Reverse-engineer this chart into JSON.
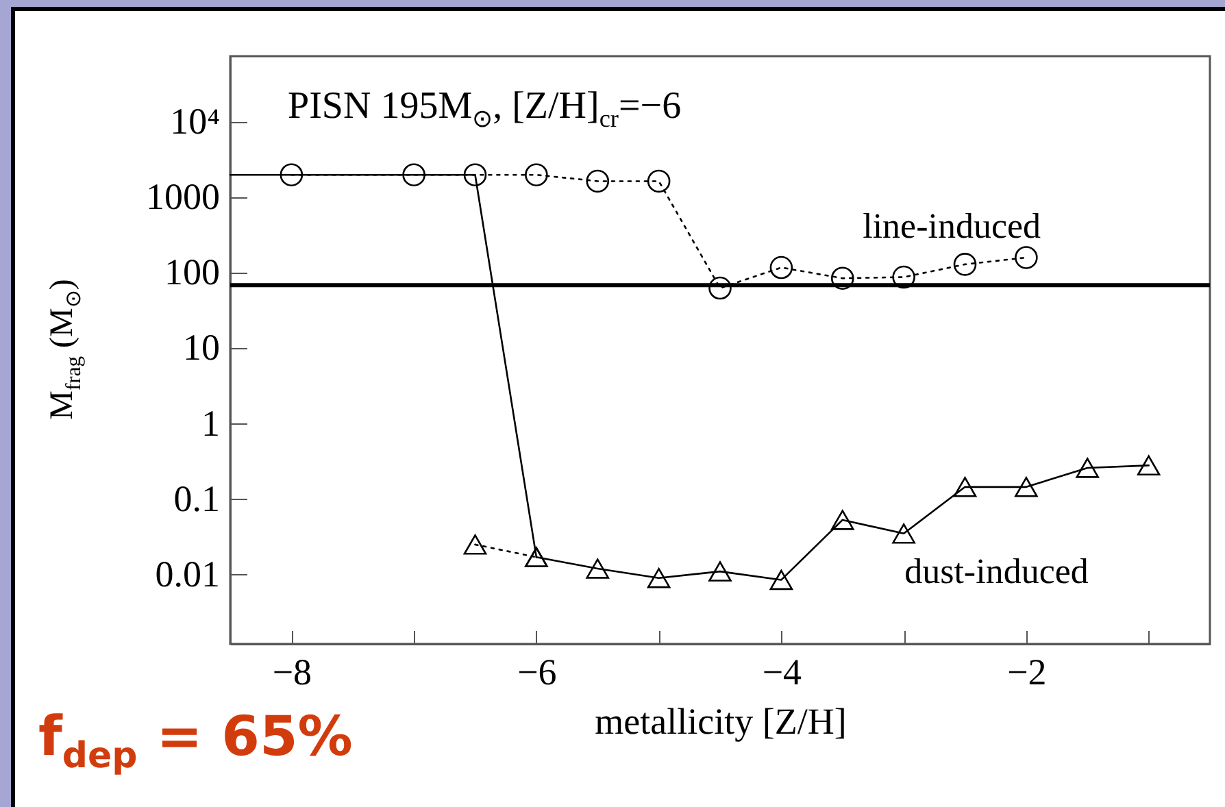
{
  "chart_data": {
    "type": "line",
    "xlabel": "metallicity [Z/H]",
    "ylabel": "M$_{frag}$ (M$_{⊙}$)",
    "log": "y",
    "xlim": [
      -8.5,
      -0.5
    ],
    "xticks": [
      -8,
      {
        "value": -7,
        "label": null
      },
      -6,
      {
        "value": -5,
        "label": null
      },
      -4,
      {
        "value": -3,
        "label": null
      },
      -2,
      {
        "value": -1,
        "label": null
      }
    ],
    "ylim": [
      0.0012,
      75000
    ],
    "yticks": [
      0.01,
      0.1,
      1,
      10,
      100,
      1000,
      {
        "value": 10000,
        "label": "10⁴"
      }
    ],
    "series": [
      {
        "name": "line-induced",
        "color": "#000000",
        "marker": "circle",
        "line_style": "dotted",
        "x": [
          -8,
          -7,
          -6.5,
          -6,
          -5.5,
          -5,
          -4.5,
          -4,
          -3.5,
          -3,
          -2.5,
          -2
        ],
        "values": [
          2000,
          2000,
          2000,
          2000,
          1650,
          1650,
          63,
          118,
          85,
          88,
          130,
          160
        ]
      },
      {
        "name": "dust-induced",
        "color": "#000000",
        "marker": "triangle",
        "line_style": "solid",
        "x": [
          -6,
          -5.5,
          -5,
          -4.5,
          -4,
          -3.5,
          -3,
          -2.5,
          -2,
          -1.5,
          -1
        ],
        "values": [
          0.017,
          0.012,
          0.009,
          0.011,
          0.0085,
          0.053,
          0.035,
          0.145,
          0.145,
          0.26,
          0.28
        ]
      },
      {
        "color": "#000000",
        "marker": "triangle",
        "line_style": "dotted",
        "x": [
          -6.5,
          -6
        ],
        "values": [
          0.025,
          0.017
        ]
      },
      {
        "color": "#000000",
        "marker": "none",
        "line_style": "solid",
        "x": [
          -8.5,
          -6.5,
          -6
        ],
        "values": [
          2000,
          2000,
          0.017
        ]
      }
    ],
    "ref_lines": [
      {
        "axis": "y",
        "value": 69,
        "color": "#000000"
      }
    ],
    "grid": false,
    "annotations": [
      "PISN 195M$_{⊙}$, [Z/H]$_{cr}$=−6",
      "f$_{dep}$ = 65%"
    ]
  }
}
